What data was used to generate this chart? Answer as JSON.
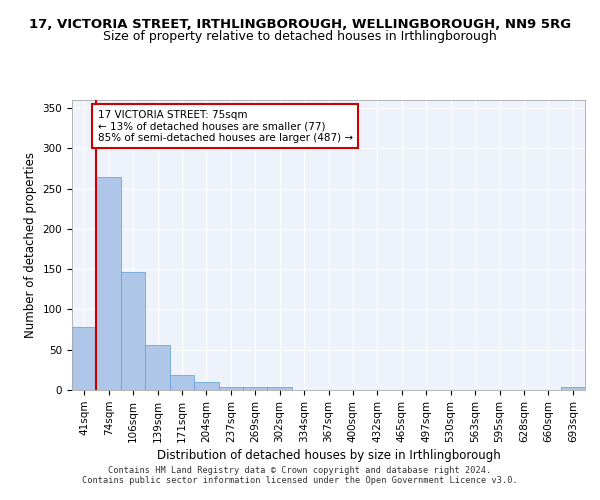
{
  "title1": "17, VICTORIA STREET, IRTHLINGBOROUGH, WELLINGBOROUGH, NN9 5RG",
  "title2": "Size of property relative to detached houses in Irthlingborough",
  "xlabel": "Distribution of detached houses by size in Irthlingborough",
  "ylabel": "Number of detached properties",
  "categories": [
    "41sqm",
    "74sqm",
    "106sqm",
    "139sqm",
    "171sqm",
    "204sqm",
    "237sqm",
    "269sqm",
    "302sqm",
    "334sqm",
    "367sqm",
    "400sqm",
    "432sqm",
    "465sqm",
    "497sqm",
    "530sqm",
    "563sqm",
    "595sqm",
    "628sqm",
    "660sqm",
    "693sqm"
  ],
  "values": [
    78,
    265,
    147,
    56,
    19,
    10,
    4,
    4,
    4,
    0,
    0,
    0,
    0,
    0,
    0,
    0,
    0,
    0,
    0,
    0,
    4
  ],
  "bar_color": "#aec6e8",
  "bar_edge_color": "#5a9fd4",
  "vline_x": 0.5,
  "vline_color": "#cc0000",
  "annotation_text": "17 VICTORIA STREET: 75sqm\n← 13% of detached houses are smaller (77)\n85% of semi-detached houses are larger (487) →",
  "annotation_box_color": "#ffffff",
  "annotation_box_edge": "#cc0000",
  "ylim": [
    0,
    360
  ],
  "yticks": [
    0,
    50,
    100,
    150,
    200,
    250,
    300,
    350
  ],
  "footer": "Contains HM Land Registry data © Crown copyright and database right 2024.\nContains public sector information licensed under the Open Government Licence v3.0.",
  "bg_color": "#eef2fb",
  "grid_color": "#ffffff",
  "title1_fontsize": 9.5,
  "title2_fontsize": 9,
  "xlabel_fontsize": 8.5,
  "ylabel_fontsize": 8.5,
  "tick_fontsize": 7.5,
  "footer_fontsize": 6.2
}
